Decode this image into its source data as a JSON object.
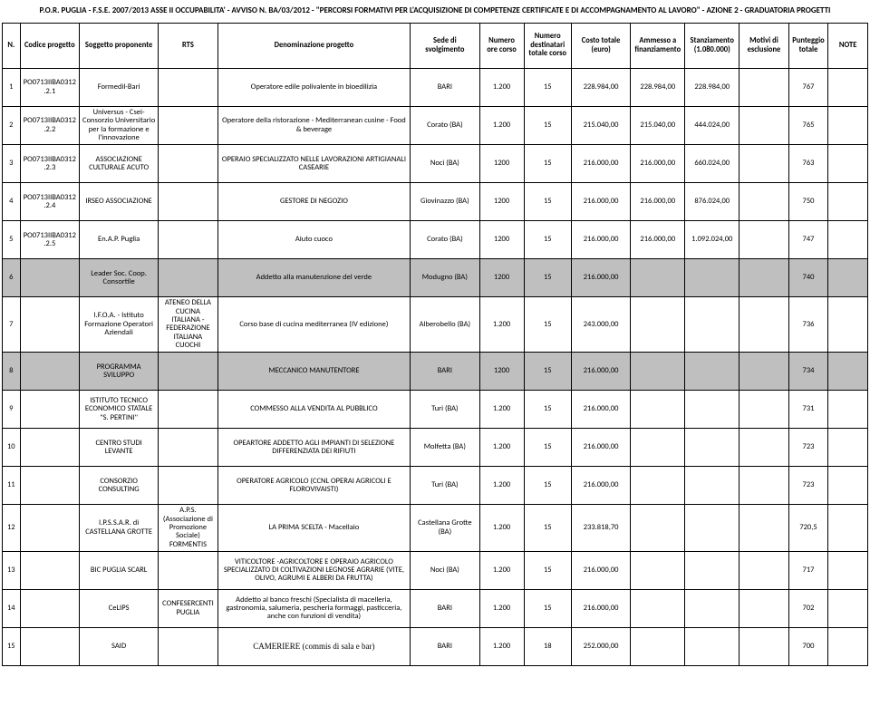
{
  "title": "P.O.R. PUGLIA - F.S.E. 2007/2013 ASSE II OCCUPABILITA' - AVVISO N. BA/03/2012 - \"PERCORSI FORMATIVI PER L'ACQUISIZIONE DI COMPETENZE CERTIFICATE E DI ACCOMPAGNAMENTO AL LAVORO\" - AZIONE 2 - GRADUATORIA PROGETTI",
  "headers": {
    "n": "N.",
    "code": "Codice progetto",
    "prop": "Soggetto proponente",
    "rts": "RTS",
    "denom": "Denominazione progetto",
    "sede": "Sede di svolgimento",
    "ore": "Numero ore corso",
    "dest": "Numero destinatari totale corso",
    "costo": "Costo totale (euro)",
    "amm": "Ammesso a finanziamento",
    "stanz": "Stanziamento (1.080.000)",
    "mot": "Motivi di esclusione",
    "punt": "Punteggio totale",
    "note": "NOTE"
  },
  "rows": [
    {
      "gray": false,
      "n": "1",
      "code": "PO0713IIBA0312.2.1",
      "prop": "Formedil-Bari",
      "rts": "",
      "denom": "Operatore edile polivalente in bioedilizia",
      "sede": "BARI",
      "ore": "1.200",
      "dest": "15",
      "costo": "228.984,00",
      "amm": "228.984,00",
      "stanz": "228.984,00",
      "mot": "",
      "punt": "767",
      "note": ""
    },
    {
      "gray": false,
      "n": "2",
      "code": "PO0713IIBA0312.2.2",
      "prop": "Universus - Csei- Consorzio Universitario per la formazione e l'innovazione",
      "rts": "",
      "denom": "Operatore della ristorazione - Mediterranean cusine - Food & beverage",
      "sede": "Corato (BA)",
      "ore": "1.200",
      "dest": "15",
      "costo": "215.040,00",
      "amm": "215.040,00",
      "stanz": "444.024,00",
      "mot": "",
      "punt": "765",
      "note": ""
    },
    {
      "gray": false,
      "n": "3",
      "code": "PO0713IIBA0312.2.3",
      "prop": "ASSOCIAZIONE CULTURALE ACUTO",
      "rts": "",
      "denom": "OPERAIO SPECIALIZZATO NELLE LAVORAZIONI ARTIGIANALI CASEARIE",
      "sede": "Noci (BA)",
      "ore": "1200",
      "dest": "15",
      "costo": "216.000,00",
      "amm": "216.000,00",
      "stanz": "660.024,00",
      "mot": "",
      "punt": "763",
      "note": ""
    },
    {
      "gray": false,
      "n": "4",
      "code": "PO0713IIBA0312.2.4",
      "prop": "IRSEO ASSOCIAZIONE",
      "rts": "",
      "denom": "GESTORE DI NEGOZIO",
      "sede": "Giovinazzo (BA)",
      "ore": "1200",
      "dest": "15",
      "costo": "216.000,00",
      "amm": "216.000,00",
      "stanz": "876.024,00",
      "mot": "",
      "punt": "750",
      "note": ""
    },
    {
      "gray": false,
      "n": "5",
      "code": "PO0713IIBA0312.2.5",
      "prop": "En.A.P. Puglia",
      "rts": "",
      "denom": "Aiuto cuoco",
      "sede": "Corato (BA)",
      "ore": "1200",
      "dest": "15",
      "costo": "216.000,00",
      "amm": "216.000,00",
      "stanz": "1.092.024,00",
      "mot": "",
      "punt": "747",
      "note": ""
    },
    {
      "gray": true,
      "n": "6",
      "code": "",
      "prop": "Leader Soc. Coop. Consortile",
      "rts": "",
      "denom": "Addetto alla manutenzione del verde",
      "sede": "Modugno (BA)",
      "ore": "1200",
      "dest": "15",
      "costo": "216.000,00",
      "amm": "",
      "stanz": "",
      "mot": "",
      "punt": "740",
      "note": ""
    },
    {
      "gray": false,
      "n": "7",
      "code": "",
      "prop": "I.F.O.A. - Istituto Formazione Operatori Aziendali",
      "rts": "ATENEO DELLA CUCINA ITALIANA - FEDERAZIONE ITALIANA CUOCHI",
      "denom": "Corso base di cucina mediterranea (IV edizione)",
      "sede": "Alberobello (BA)",
      "ore": "1.200",
      "dest": "15",
      "costo": "243.000,00",
      "amm": "",
      "stanz": "",
      "mot": "",
      "punt": "736",
      "note": ""
    },
    {
      "gray": true,
      "n": "8",
      "code": "",
      "prop": "PROGRAMMA SVILUPPO",
      "rts": "",
      "denom": "MECCANICO MANUTENTORE",
      "sede": "BARI",
      "ore": "1200",
      "dest": "15",
      "costo": "216.000,00",
      "amm": "",
      "stanz": "",
      "mot": "",
      "punt": "734",
      "note": ""
    },
    {
      "gray": false,
      "n": "9",
      "code": "",
      "prop": "ISTITUTO TECNICO ECONOMICO STATALE \"S. PERTINI\"",
      "rts": "",
      "denom": "COMMESSO ALLA VENDITA AL PUBBLICO",
      "sede": "Turi (BA)",
      "ore": "1.200",
      "dest": "15",
      "costo": "216.000,00",
      "amm": "",
      "stanz": "",
      "mot": "",
      "punt": "731",
      "note": ""
    },
    {
      "gray": false,
      "n": "10",
      "code": "",
      "prop": "CENTRO STUDI LEVANTE",
      "rts": "",
      "denom": "OPEARTORE ADDETTO AGLI IMPIANTI DI SELEZIONE DIFFERENZIATA DEI RIFIUTI",
      "sede": "Molfetta (BA)",
      "ore": "1.200",
      "dest": "15",
      "costo": "216.000,00",
      "amm": "",
      "stanz": "",
      "mot": "",
      "punt": "723",
      "note": ""
    },
    {
      "gray": false,
      "n": "11",
      "code": "",
      "prop": "CONSORZIO CONSULTING",
      "rts": "",
      "denom": "OPERATORE AGRICOLO (CCNL OPERAI AGRICOLI E FLOROVIVAISTI)",
      "sede": "Turi (BA)",
      "ore": "1.200",
      "dest": "15",
      "costo": "216.000,00",
      "amm": "",
      "stanz": "",
      "mot": "",
      "punt": "723",
      "note": ""
    },
    {
      "gray": false,
      "n": "12",
      "code": "",
      "prop": "I.P.S.S.A.R. di CASTELLANA GROTTE",
      "rts": "A.P.S. (Associazione di Promozione Sociale) FORMENTIS",
      "denom": "LA PRIMA SCELTA - Macellaio",
      "sede": "Castellana Grotte (BA)",
      "ore": "1.200",
      "dest": "15",
      "costo": "233.818,70",
      "amm": "",
      "stanz": "",
      "mot": "",
      "punt": "720,5",
      "note": ""
    },
    {
      "gray": false,
      "n": "13",
      "code": "",
      "prop": "BIC PUGLIA SCARL",
      "rts": "",
      "denom": "VITICOLTORE -AGRICOLTORE E OPERAIO AGRICOLO SPECIALIZZATO DI COLTIVAZIONI LEGNOSE AGRARIE (VITE, OLIVO, AGRUMI E ALBERI DA FRUTTA)",
      "sede": "Noci (BA)",
      "ore": "1.200",
      "dest": "15",
      "costo": "216.000,00",
      "amm": "",
      "stanz": "",
      "mot": "",
      "punt": "717",
      "note": ""
    },
    {
      "gray": false,
      "n": "14",
      "code": "",
      "prop": "CeLIPS",
      "rts": "CONFESERCENTI PUGLIA",
      "denom": "Addetto al banco freschi (Specialista di macelleria, gastronomia, salumeria, pescheria formaggi, pasticceria, anche con funzioni di vendita)",
      "sede": "BARI",
      "ore": "1.200",
      "dest": "15",
      "costo": "216.000,00",
      "amm": "",
      "stanz": "",
      "mot": "",
      "punt": "702",
      "note": ""
    },
    {
      "gray": false,
      "n": "15",
      "code": "",
      "prop": "SAID",
      "rts": "",
      "denom": "CAMERIERE (commis di sala e bar)",
      "denom_serif": true,
      "sede": "BARI",
      "ore": "1.200",
      "dest": "18",
      "costo": "252.000,00",
      "amm": "",
      "stanz": "",
      "mot": "",
      "punt": "700",
      "note": ""
    }
  ]
}
